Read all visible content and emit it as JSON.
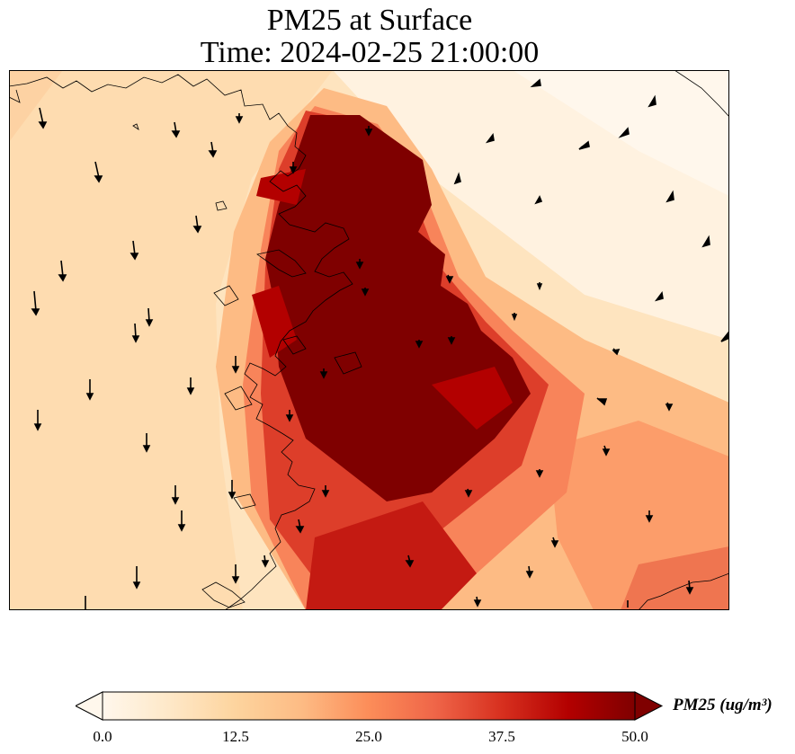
{
  "title": {
    "line1": "PM25 at Surface",
    "line2": "Time: 2024-02-25 21:00:00"
  },
  "colorbar": {
    "label": "PM25 (ug/m³)",
    "min": 0.0,
    "max": 50.0,
    "extend": "both",
    "colormap": "OrRd",
    "ticks": [
      "0.0",
      "12.5",
      "25.0",
      "37.5",
      "50.0"
    ],
    "stops": [
      "#fff7ec",
      "#fee8c8",
      "#fdd49e",
      "#fdbb84",
      "#fc8d59",
      "#ef6548",
      "#d7301f",
      "#b30000",
      "#7f0000"
    ]
  },
  "map": {
    "field": "PM25",
    "level": "Surface",
    "features": [
      "coastlines",
      "wind-vectors",
      "gridded-concentration"
    ]
  }
}
